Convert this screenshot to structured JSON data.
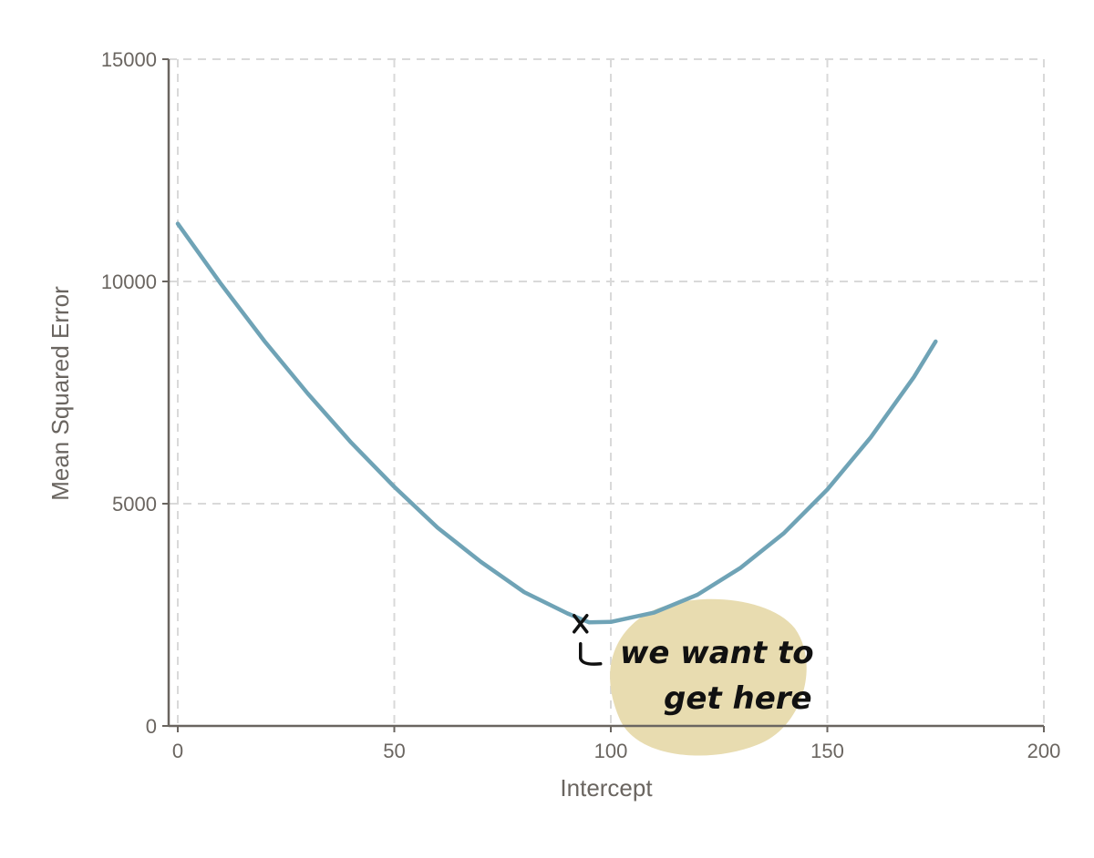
{
  "chart_data": {
    "type": "line",
    "title": "",
    "xlabel": "Intercept",
    "ylabel": "Mean Squared Error",
    "xlim": [
      0,
      200
    ],
    "ylim": [
      0,
      15000
    ],
    "x_ticks": [
      "0",
      "50",
      "100",
      "150",
      "200"
    ],
    "y_ticks": [
      "0",
      "5000",
      "10000",
      "15000"
    ],
    "grid": true,
    "series": [
      {
        "color": "#6fa3b6",
        "points": [
          [
            0,
            11300
          ],
          [
            10,
            9940
          ],
          [
            20,
            8660
          ],
          [
            30,
            7480
          ],
          [
            40,
            6380
          ],
          [
            50,
            5380
          ],
          [
            60,
            4460
          ],
          [
            70,
            3690
          ],
          [
            80,
            3010
          ],
          [
            90,
            2530
          ],
          [
            95,
            2330
          ],
          [
            100,
            2340
          ],
          [
            110,
            2550
          ],
          [
            120,
            2950
          ],
          [
            130,
            3560
          ],
          [
            140,
            4340
          ],
          [
            150,
            5320
          ],
          [
            160,
            6490
          ],
          [
            170,
            7850
          ],
          [
            175,
            8650
          ]
        ]
      }
    ],
    "annotation": {
      "marker_x": 93,
      "marker_y": 2300,
      "text_lines": [
        "we want to",
        "get here"
      ],
      "highlight_color": "#e8dcb0"
    }
  },
  "colors": {
    "axis": "#6a6560",
    "grid": "#d9d9d9",
    "text": "#6a6560"
  }
}
